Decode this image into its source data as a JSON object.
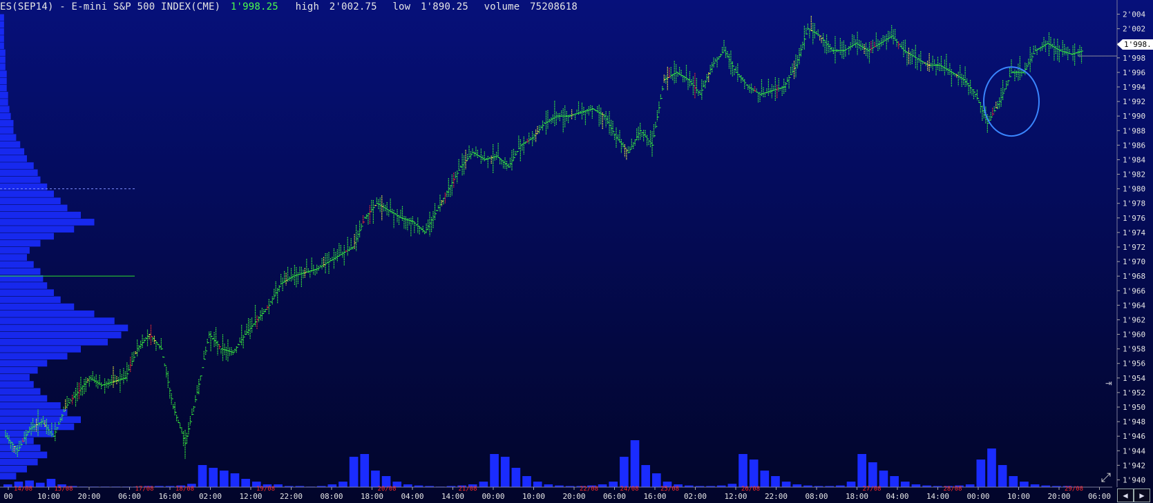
{
  "header": {
    "instrument": "ES(SEP14) - E-mini S&P 500 INDEX(CME)",
    "last": "1'998.25",
    "high_label": "high",
    "high": "2'002.75",
    "low_label": "low",
    "low": "1'890.25",
    "volume_label": "volume",
    "volume": "75208618"
  },
  "last_price_badge": "1'998.",
  "icons": {
    "expand": "expand-icon",
    "axis_arrow": "arrow-right-icon",
    "scroll_left": "chevron-left-icon",
    "scroll_right": "chevron-right-icon"
  },
  "colors": {
    "background_top": "#06107a",
    "background_bottom": "#02052a",
    "bars": "#3cff3c",
    "bars_highlight": "#ffff40",
    "bars_alt": "#ff3030",
    "volume": "#1a2cff",
    "profile": "#1a2cff",
    "axis_text": "#e6e6e6",
    "date_text": "#ff2a2a",
    "poc_line": "#2ee02e",
    "annotation": "#3a86ff"
  },
  "chart_data": {
    "type": "bar",
    "y_range": [
      1939,
      2005
    ],
    "y_ticks": [
      "1'940",
      "1'942",
      "1'944",
      "1'946",
      "1'948",
      "1'950",
      "1'952",
      "1'954",
      "1'956",
      "1'958",
      "1'960",
      "1'962",
      "1'964",
      "1'966",
      "1'968",
      "1'970",
      "1'972",
      "1'974",
      "1'976",
      "1'978",
      "1'980",
      "1'982",
      "1'984",
      "1'986",
      "1'988",
      "1'990",
      "1'992",
      "1'994",
      "1'996",
      "1'998",
      "2'000",
      "2'002",
      "2'004"
    ],
    "y_tick_values": [
      1940,
      1942,
      1944,
      1946,
      1948,
      1950,
      1952,
      1954,
      1956,
      1958,
      1960,
      1962,
      1964,
      1966,
      1968,
      1970,
      1972,
      1974,
      1976,
      1978,
      1980,
      1982,
      1984,
      1986,
      1988,
      1990,
      1992,
      1994,
      1996,
      1998,
      2000,
      2002,
      2004
    ],
    "x_time_labels": [
      "00",
      "10:00",
      "20:00",
      "06:00",
      "16:00",
      "02:00",
      "12:00",
      "22:00",
      "08:00",
      "18:00",
      "04:00",
      "14:00",
      "00:00",
      "10:00",
      "20:00",
      "06:00",
      "16:00",
      "02:00",
      "12:00",
      "22:00",
      "08:00",
      "18:00",
      "04:00",
      "14:00",
      "00:00",
      "10:00",
      "20:00",
      "06:00"
    ],
    "x_date_labels": [
      {
        "label": "14/08",
        "after": 0
      },
      {
        "label": "15/08",
        "after": 1
      },
      {
        "label": "17/08",
        "after": 3
      },
      {
        "label": "18/08",
        "after": 4
      },
      {
        "label": "19/08",
        "after": 6
      },
      {
        "label": "20/08",
        "after": 9
      },
      {
        "label": "21/08",
        "after": 11
      },
      {
        "label": "22/08",
        "after": 14
      },
      {
        "label": "24/08",
        "after": 15
      },
      {
        "label": "25/08",
        "after": 16
      },
      {
        "label": "26/08",
        "after": 18
      },
      {
        "label": "27/08",
        "after": 21
      },
      {
        "label": "28/08",
        "after": 23
      },
      {
        "label": "29/08",
        "after": 26
      }
    ],
    "price_path": [
      [
        0,
        1946
      ],
      [
        1,
        1944
      ],
      [
        2,
        1947
      ],
      [
        3,
        1948
      ],
      [
        4,
        1946
      ],
      [
        5,
        1950
      ],
      [
        6,
        1952
      ],
      [
        7,
        1954
      ],
      [
        8,
        1953
      ],
      [
        9,
        1953.5
      ],
      [
        10,
        1954
      ],
      [
        11,
        1958
      ],
      [
        12,
        1960
      ],
      [
        13,
        1958
      ],
      [
        14,
        1950
      ],
      [
        15,
        1945
      ],
      [
        16,
        1952
      ],
      [
        17,
        1960
      ],
      [
        18,
        1958
      ],
      [
        19,
        1957.5
      ],
      [
        20,
        1960
      ],
      [
        21,
        1962
      ],
      [
        22,
        1964
      ],
      [
        23,
        1967
      ],
      [
        24,
        1968
      ],
      [
        25,
        1968.5
      ],
      [
        26,
        1969
      ],
      [
        27,
        1970
      ],
      [
        28,
        1971
      ],
      [
        29,
        1972
      ],
      [
        30,
        1976
      ],
      [
        31,
        1978
      ],
      [
        32,
        1977
      ],
      [
        33,
        1976
      ],
      [
        34,
        1975.5
      ],
      [
        35,
        1974
      ],
      [
        36,
        1977
      ],
      [
        37,
        1980
      ],
      [
        38,
        1983
      ],
      [
        39,
        1985
      ],
      [
        40,
        1984
      ],
      [
        41,
        1984.5
      ],
      [
        42,
        1983
      ],
      [
        43,
        1986
      ],
      [
        44,
        1987
      ],
      [
        45,
        1989
      ],
      [
        46,
        1990
      ],
      [
        47,
        1990
      ],
      [
        48,
        1990.5
      ],
      [
        49,
        1991
      ],
      [
        50,
        1990
      ],
      [
        51,
        1987
      ],
      [
        52,
        1985
      ],
      [
        53,
        1988
      ],
      [
        54,
        1986
      ],
      [
        55,
        1995
      ],
      [
        56,
        1996
      ],
      [
        57,
        1995
      ],
      [
        58,
        1993
      ],
      [
        59,
        1997
      ],
      [
        60,
        1999
      ],
      [
        61,
        1996
      ],
      [
        62,
        1994
      ],
      [
        63,
        1993
      ],
      [
        64,
        1993.5
      ],
      [
        65,
        1994
      ],
      [
        66,
        1997
      ],
      [
        67,
        2002
      ],
      [
        68,
        2001
      ],
      [
        69,
        1999
      ],
      [
        70,
        1999
      ],
      [
        71,
        2000
      ],
      [
        72,
        1999
      ],
      [
        73,
        2000
      ],
      [
        74,
        2001
      ],
      [
        75,
        1999
      ],
      [
        76,
        1998
      ],
      [
        77,
        1997
      ],
      [
        78,
        1997
      ],
      [
        79,
        1996
      ],
      [
        80,
        1995
      ],
      [
        81,
        1993
      ],
      [
        82,
        1989
      ],
      [
        83,
        1992
      ],
      [
        84,
        1996
      ],
      [
        85,
        1996
      ],
      [
        86,
        1999
      ],
      [
        87,
        2000
      ],
      [
        88,
        1999
      ],
      [
        89,
        1998.5
      ],
      [
        90,
        1999
      ]
    ],
    "volume_heights": [
      0.05,
      0.1,
      0.12,
      0.08,
      0.15,
      0.05,
      0.02,
      0.01,
      0.01,
      0.01,
      0.01,
      0.01,
      0.01,
      0.02,
      0.02,
      0.02,
      0.03,
      0.06,
      0.4,
      0.35,
      0.3,
      0.25,
      0.15,
      0.1,
      0.05,
      0.05,
      0.02,
      0.02,
      0.01,
      0.02,
      0.05,
      0.1,
      0.55,
      0.6,
      0.3,
      0.2,
      0.1,
      0.05,
      0.03,
      0.02,
      0.01,
      0.02,
      0.03,
      0.05,
      0.1,
      0.6,
      0.55,
      0.35,
      0.2,
      0.1,
      0.05,
      0.03,
      0.02,
      0.02,
      0.03,
      0.05,
      0.1,
      0.55,
      0.85,
      0.4,
      0.25,
      0.1,
      0.05,
      0.03,
      0.02,
      0.02,
      0.03,
      0.06,
      0.6,
      0.5,
      0.3,
      0.2,
      0.1,
      0.05,
      0.03,
      0.02,
      0.02,
      0.03,
      0.1,
      0.6,
      0.45,
      0.3,
      0.2,
      0.1,
      0.05,
      0.03,
      0.02,
      0.02,
      0.03,
      0.05,
      0.5,
      0.7,
      0.4,
      0.2,
      0.1,
      0.05,
      0.03,
      0.02,
      0.02,
      0.01
    ],
    "volume_profile": [
      0.12,
      0.2,
      0.28,
      0.35,
      0.3,
      0.25,
      0.4,
      0.55,
      0.6,
      0.5,
      0.45,
      0.35,
      0.3,
      0.25,
      0.22,
      0.28,
      0.35,
      0.5,
      0.6,
      0.8,
      0.9,
      0.95,
      0.85,
      0.7,
      0.55,
      0.45,
      0.4,
      0.35,
      0.32,
      0.3,
      0.25,
      0.2,
      0.22,
      0.3,
      0.4,
      0.55,
      0.7,
      0.6,
      0.5,
      0.45,
      0.4,
      0.35,
      0.3,
      0.28,
      0.25,
      0.2,
      0.18,
      0.15,
      0.12,
      0.1,
      0.1,
      0.08,
      0.07,
      0.06,
      0.06,
      0.05,
      0.05,
      0.05,
      0.04,
      0.04,
      0.04,
      0.03,
      0.03,
      0.03,
      0.03,
      0.03
    ],
    "volume_profile_range": [
      1940,
      2004
    ],
    "poc_price": 1968,
    "value_area_high": 1980,
    "annotation_circle": {
      "x_index": 84,
      "y_center": 1992,
      "note": ""
    },
    "grid": false,
    "title": "",
    "xlabel": "",
    "ylabel": ""
  }
}
